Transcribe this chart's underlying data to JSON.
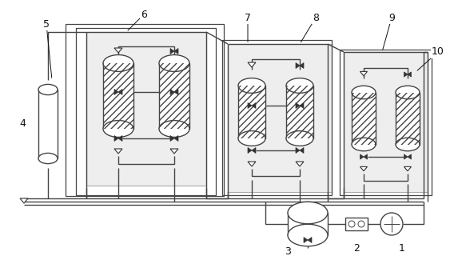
{
  "fig_w": 5.63,
  "fig_h": 3.25,
  "dpi": 100,
  "bg": "#ffffff",
  "lc": "#444444",
  "lw": 1.0,
  "hatch": "////",
  "gray_fill": "#e8e8e8",
  "gray_border": "#999999"
}
